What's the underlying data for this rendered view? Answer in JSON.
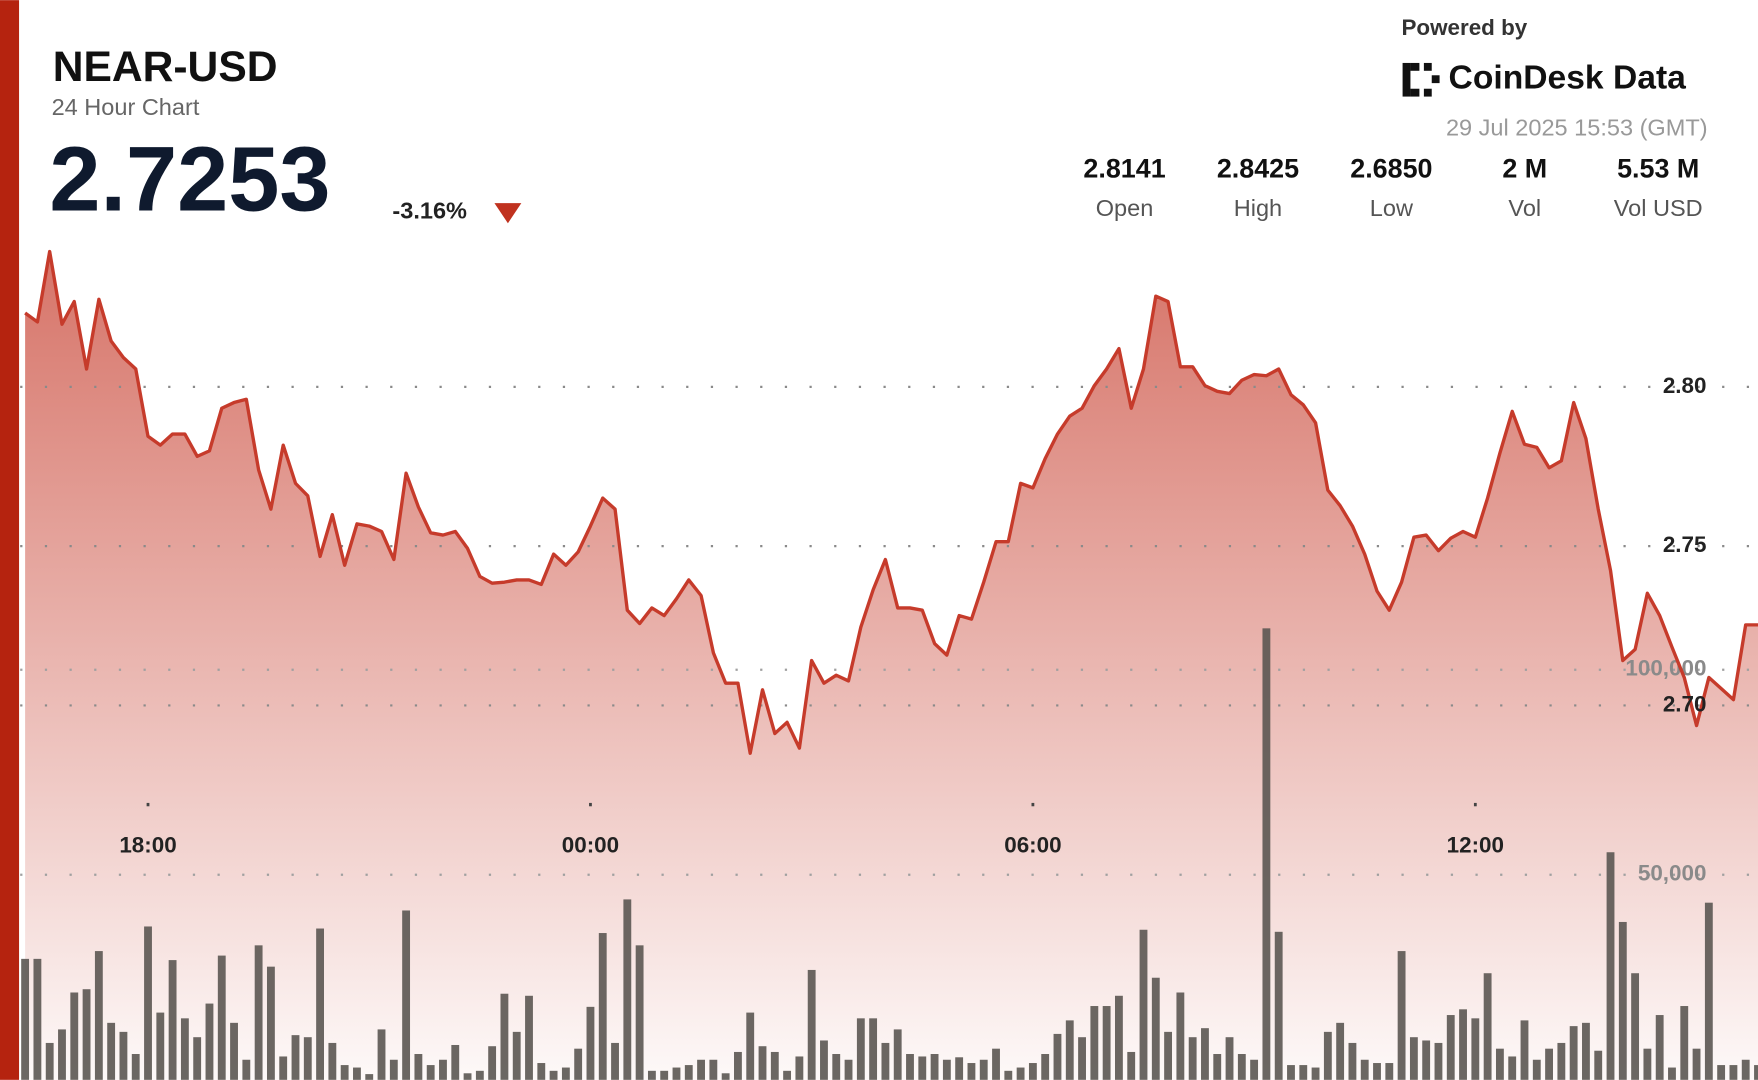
{
  "header": {
    "symbol": "NEAR-USD",
    "subtitle": "24 Hour Chart",
    "price": "2.7253",
    "change": "-3.16%",
    "powered_by": "Powered by",
    "brand": "CoinDesk Data",
    "timestamp": "29 Jul 2025 15:53 (GMT)",
    "stats": [
      {
        "value": "2.8141",
        "label": "Open"
      },
      {
        "value": "2.8425",
        "label": "High"
      },
      {
        "value": "2.6850",
        "label": "Low"
      },
      {
        "value": "2 M",
        "label": "Vol"
      },
      {
        "value": "5.53 M",
        "label": "Vol USD"
      }
    ]
  },
  "chart_data": {
    "type": "line",
    "area": true,
    "x": [
      "16:20",
      "16:30",
      "16:40",
      "16:50",
      "17:00",
      "17:10",
      "17:20",
      "17:30",
      "17:40",
      "17:50",
      "18:00",
      "18:10",
      "18:20",
      "18:30",
      "18:40",
      "18:50",
      "19:00",
      "19:10",
      "19:20",
      "19:30",
      "19:40",
      "19:50",
      "20:00",
      "20:10",
      "20:20",
      "20:30",
      "20:40",
      "20:50",
      "21:00",
      "21:10",
      "21:20",
      "21:30",
      "21:40",
      "21:50",
      "22:00",
      "22:10",
      "22:20",
      "22:30",
      "22:40",
      "22:50",
      "23:00",
      "23:10",
      "23:20",
      "23:30",
      "23:40",
      "23:50",
      "00:00",
      "00:10",
      "00:20",
      "00:30",
      "00:40",
      "00:50",
      "01:00",
      "01:10",
      "01:20",
      "01:30",
      "01:40",
      "01:50",
      "02:00",
      "02:10",
      "02:20",
      "02:30",
      "02:40",
      "02:50",
      "03:00",
      "03:10",
      "03:20",
      "03:30",
      "03:40",
      "03:50",
      "04:00",
      "04:10",
      "04:20",
      "04:30",
      "04:40",
      "04:50",
      "05:00",
      "05:10",
      "05:20",
      "05:30",
      "05:40",
      "05:50",
      "06:00",
      "06:10",
      "06:20",
      "06:30",
      "06:40",
      "06:50",
      "07:00",
      "07:10",
      "07:20",
      "07:30",
      "07:40",
      "07:50",
      "08:00",
      "08:10",
      "08:20",
      "08:30",
      "08:40",
      "08:50",
      "09:00",
      "09:10",
      "09:20",
      "09:30",
      "09:40",
      "09:50",
      "10:00",
      "10:10",
      "10:20",
      "10:30",
      "10:40",
      "10:50",
      "11:00",
      "11:10",
      "11:20",
      "11:30",
      "11:40",
      "11:50",
      "12:00",
      "12:10",
      "12:20",
      "12:30",
      "12:40",
      "12:50",
      "13:00",
      "13:10",
      "13:20",
      "13:30",
      "13:40",
      "13:50",
      "14:00",
      "14:10",
      "14:20",
      "14:30",
      "14:40",
      "14:50",
      "15:00",
      "15:10",
      "15:20",
      "15:30",
      "15:40",
      "15:50"
    ],
    "series": [
      {
        "color": "#c63b2b",
        "values": [
          2.8232,
          2.8204,
          2.8425,
          2.8197,
          2.8268,
          2.8056,
          2.8275,
          2.8144,
          2.8092,
          2.8056,
          2.7845,
          2.7817,
          2.7852,
          2.7852,
          2.7782,
          2.7799,
          2.7933,
          2.7951,
          2.7961,
          2.7739,
          2.7616,
          2.7817,
          2.7697,
          2.7658,
          2.7468,
          2.7599,
          2.744,
          2.757,
          2.7563,
          2.7546,
          2.7458,
          2.7729,
          2.7623,
          2.7542,
          2.7535,
          2.7546,
          2.7493,
          2.7405,
          2.7384,
          2.7387,
          2.7394,
          2.7394,
          2.738,
          2.7475,
          2.744,
          2.7482,
          2.7563,
          2.7651,
          2.7616,
          2.7299,
          2.7257,
          2.7306,
          2.7282,
          2.7335,
          2.7394,
          2.7345,
          2.7165,
          2.707,
          2.707,
          2.685,
          2.7049,
          2.6912,
          2.6947,
          2.6866,
          2.7141,
          2.707,
          2.7095,
          2.7077,
          2.7246,
          2.7363,
          2.7458,
          2.7306,
          2.7306,
          2.7299,
          2.7194,
          2.7158,
          2.7282,
          2.7271,
          2.7387,
          2.7514,
          2.7514,
          2.7697,
          2.7683,
          2.7775,
          2.7852,
          2.7908,
          2.7933,
          2.8004,
          2.8056,
          2.812,
          2.7933,
          2.8056,
          2.8285,
          2.8268,
          2.8063,
          2.8063,
          2.8004,
          2.7986,
          2.7979,
          2.8021,
          2.8039,
          2.8035,
          2.8056,
          2.7975,
          2.7944,
          2.7887,
          2.7676,
          2.7627,
          2.7563,
          2.7475,
          2.7359,
          2.7299,
          2.7387,
          2.7528,
          2.7535,
          2.7486,
          2.7525,
          2.7546,
          2.7528,
          2.7651,
          2.7792,
          2.7923,
          2.782,
          2.781,
          2.7746,
          2.7768,
          2.7951,
          2.7838,
          2.7616,
          2.7423,
          2.7141,
          2.7176,
          2.7352,
          2.7282,
          2.7183,
          2.7088,
          2.6937,
          2.7088,
          2.7053,
          2.7018,
          2.7253,
          2.7253
        ]
      },
      {
        "type": "bar",
        "axis": "y2",
        "color": "#5b5652",
        "values": [
          29500,
          29500,
          9000,
          12300,
          21300,
          22100,
          31400,
          13900,
          11700,
          6300,
          37400,
          16400,
          29200,
          15000,
          10400,
          18600,
          30300,
          13900,
          4900,
          32800,
          27600,
          5700,
          10900,
          10400,
          36900,
          9000,
          3600,
          3000,
          1400,
          12300,
          4900,
          41300,
          6300,
          3600,
          4900,
          8500,
          1600,
          2200,
          8200,
          21000,
          11700,
          20500,
          4100,
          2200,
          3000,
          7600,
          17800,
          35800,
          9000,
          44000,
          32800,
          2200,
          2200,
          3000,
          3600,
          4900,
          4900,
          1600,
          6800,
          16400,
          8200,
          6800,
          2200,
          5700,
          26800,
          9600,
          6300,
          4900,
          15000,
          15000,
          9000,
          12300,
          6300,
          5700,
          6300,
          4900,
          5500,
          4100,
          4900,
          7600,
          2200,
          3000,
          4100,
          6300,
          11200,
          14500,
          10400,
          18000,
          18000,
          20500,
          6800,
          36600,
          24900,
          11700,
          21300,
          10400,
          12600,
          6300,
          10400,
          6300,
          4900,
          110100,
          36100,
          3600,
          3600,
          3000,
          11700,
          13900,
          9000,
          4900,
          4100,
          4100,
          31400,
          10400,
          9600,
          9000,
          15800,
          17200,
          15000,
          26000,
          7600,
          5700,
          14500,
          4900,
          7600,
          9000,
          13100,
          13900,
          7100,
          55500,
          38500,
          26000,
          7600,
          15800,
          3000,
          18000,
          7600,
          43200,
          3600,
          3600,
          4900,
          3600
        ]
      }
    ],
    "ylim": [
      2.58,
      2.92
    ],
    "yticks": [
      {
        "value": 2.8,
        "label": "2.80"
      },
      2.75,
      {
        "value": 2.7,
        "label": "2.70"
      }
    ],
    "y2lim": [
      0,
      260000
    ],
    "y2ticks": [
      {
        "value": 50000,
        "label": "50,000"
      },
      {
        "value": 100000,
        "label": "100,000"
      }
    ],
    "xticks": [
      "18:00",
      "00:00",
      "06:00",
      "12:00"
    ],
    "grid": true
  }
}
